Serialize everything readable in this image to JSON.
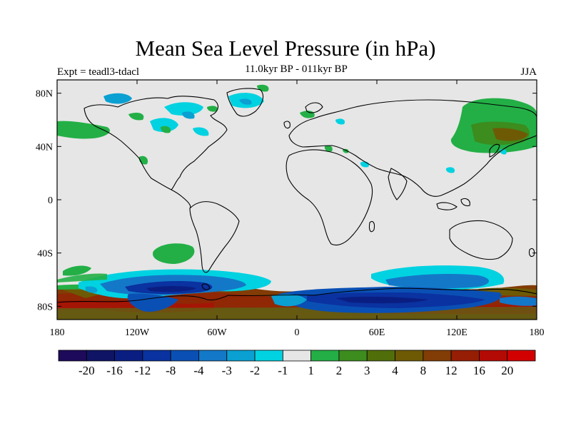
{
  "header": {
    "title": "Mean Sea Level Pressure (in hPa)",
    "subtitle": "11.0kyr BP - 011kyr BP",
    "experiment": "Expt = teadl3-tdacl",
    "season": "JJA"
  },
  "map": {
    "lon_range": [
      -180,
      180
    ],
    "lat_range": [
      -90,
      90
    ],
    "background_color": "#e6e6e6",
    "lat_ticks": [
      {
        "value": 80,
        "label": "80N"
      },
      {
        "value": 40,
        "label": "40N"
      },
      {
        "value": 0,
        "label": "0"
      },
      {
        "value": -40,
        "label": "40S"
      },
      {
        "value": -80,
        "label": "80S"
      }
    ],
    "lon_ticks": [
      {
        "value": -180,
        "label": "180"
      },
      {
        "value": -120,
        "label": "120W"
      },
      {
        "value": -60,
        "label": "60W"
      },
      {
        "value": 0,
        "label": "0"
      },
      {
        "value": 60,
        "label": "60E"
      },
      {
        "value": 120,
        "label": "120E"
      },
      {
        "value": 180,
        "label": "180"
      }
    ]
  },
  "colorbar": {
    "colors": [
      "#1e0a5a",
      "#0f1464",
      "#0a1e82",
      "#0a32a0",
      "#0a50b4",
      "#1478c8",
      "#0aa0d2",
      "#00d2e1",
      "#e6e6e6",
      "#23af46",
      "#3c8c1e",
      "#506e0a",
      "#6e5a05",
      "#823c05",
      "#961e05",
      "#b40a05",
      "#d20000"
    ],
    "labels": [
      "-20",
      "-16",
      "-12",
      "-8",
      "-4",
      "-3",
      "-2",
      "-1",
      "1",
      "2",
      "3",
      "4",
      "8",
      "12",
      "16",
      "20"
    ]
  },
  "chart_data": {
    "type": "heatmap",
    "title": "Mean Sea Level Pressure (in hPa)",
    "subtitle": "11.0kyr BP - 011kyr BP",
    "levels": [
      -20,
      -16,
      -12,
      -8,
      -4,
      -3,
      -2,
      -1,
      1,
      2,
      3,
      4,
      8,
      12,
      16,
      20
    ],
    "anomaly_regions": [
      {
        "lon": [
          -180,
          180
        ],
        "lat": [
          -90,
          -70
        ],
        "level_range": [
          4,
          20
        ]
      },
      {
        "lon": [
          -150,
          -60
        ],
        "lat": [
          -70,
          -55
        ],
        "level_range": [
          -12,
          -2
        ]
      },
      {
        "lon": [
          30,
          160
        ],
        "lat": [
          -72,
          -55
        ],
        "level_range": [
          -8,
          -1
        ]
      },
      {
        "lon": [
          -120,
          -95
        ],
        "lat": [
          -45,
          -35
        ],
        "level_range": [
          1,
          2
        ]
      },
      {
        "lon": [
          130,
          180
        ],
        "lat": [
          35,
          75
        ],
        "level_range": [
          1,
          8
        ]
      },
      {
        "lon": [
          -100,
          -60
        ],
        "lat": [
          50,
          85
        ],
        "level_range": [
          -3,
          2
        ]
      }
    ]
  }
}
